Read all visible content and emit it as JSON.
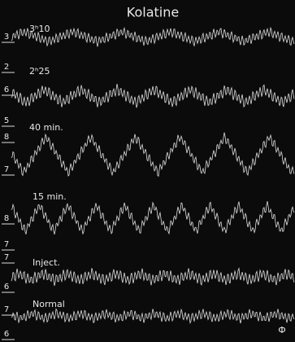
{
  "title": "Kolatine",
  "panels": [
    {
      "label": "3ʰ10"
    },
    {
      "label": "2ʰ25"
    },
    {
      "label": "40 min."
    },
    {
      "label": "15 min."
    },
    {
      "label": "Inject."
    },
    {
      "label": "Normal"
    }
  ],
  "scale_labels": [
    "3",
    "2",
    "6",
    "5",
    "8",
    "7",
    "8",
    "7",
    "7",
    "6",
    "7",
    "6"
  ],
  "corner_mark": "Ф"
}
